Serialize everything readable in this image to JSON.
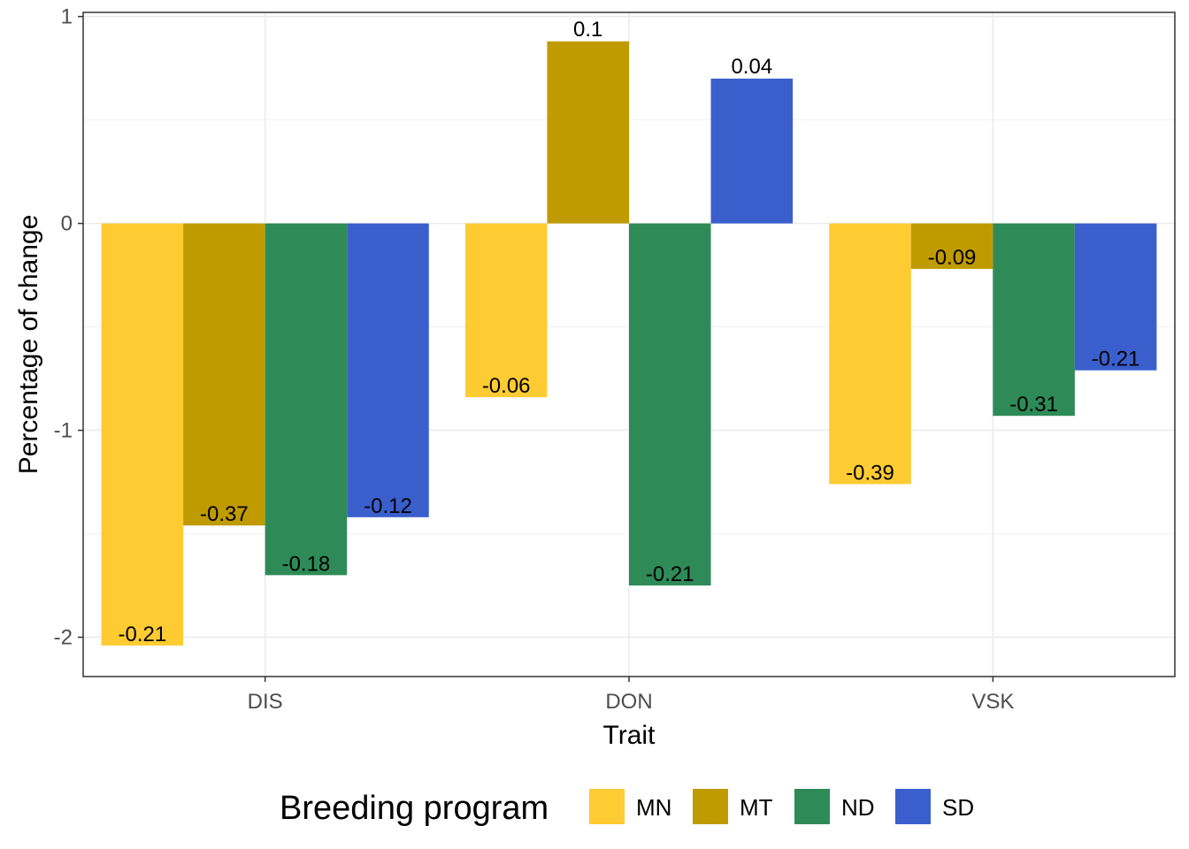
{
  "chart_data": {
    "type": "bar",
    "categories": [
      "DIS",
      "DON",
      "VSK"
    ],
    "series": [
      {
        "name": "MN",
        "color": "#FFCB32",
        "values": [
          -2.04,
          -0.84,
          -1.26
        ],
        "labels": [
          "-0.21",
          "-0.06",
          "-0.39"
        ]
      },
      {
        "name": "MT",
        "color": "#BF9B00",
        "values": [
          -1.46,
          0.88,
          -0.22
        ],
        "labels": [
          "-0.37",
          "0.1",
          "-0.09"
        ]
      },
      {
        "name": "ND",
        "color": "#2E8B57",
        "values": [
          -1.7,
          -1.75,
          -0.93
        ],
        "labels": [
          "-0.18",
          "-0.21",
          "-0.31"
        ]
      },
      {
        "name": "SD",
        "color": "#3A5FCD",
        "values": [
          -1.42,
          0.7,
          -0.71
        ],
        "labels": [
          "-0.12",
          "0.04",
          "-0.21"
        ]
      }
    ],
    "xlabel": "Trait",
    "ylabel": "Percentage of change",
    "ylim": [
      -2.19,
      1.02
    ],
    "yticks": [
      -2,
      -1,
      0,
      1
    ],
    "ytick_labels": [
      "-2",
      "-1",
      "0",
      "1"
    ],
    "grid": true,
    "legend": {
      "title": "Breeding program",
      "position": "bottom"
    }
  }
}
